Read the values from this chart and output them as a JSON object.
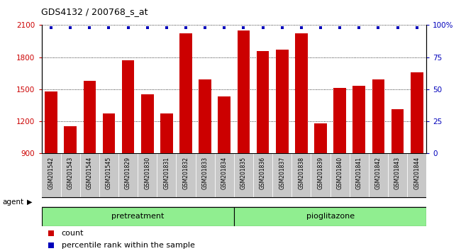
{
  "title": "GDS4132 / 200768_s_at",
  "samples": [
    "GSM201542",
    "GSM201543",
    "GSM201544",
    "GSM201545",
    "GSM201829",
    "GSM201830",
    "GSM201831",
    "GSM201832",
    "GSM201833",
    "GSM201834",
    "GSM201835",
    "GSM201836",
    "GSM201837",
    "GSM201838",
    "GSM201839",
    "GSM201840",
    "GSM201841",
    "GSM201842",
    "GSM201843",
    "GSM201844"
  ],
  "counts": [
    1480,
    1155,
    1580,
    1270,
    1770,
    1450,
    1270,
    2020,
    1590,
    1430,
    2050,
    1860,
    1870,
    2020,
    1180,
    1510,
    1530,
    1590,
    1310,
    1660
  ],
  "pretreatment_count": 10,
  "pioglitazone_count": 10,
  "ylim_left": [
    900,
    2100
  ],
  "ylim_right": [
    0,
    100
  ],
  "yticks_left": [
    900,
    1200,
    1500,
    1800,
    2100
  ],
  "yticks_right": [
    0,
    25,
    50,
    75,
    100
  ],
  "bar_color": "#cc0000",
  "dot_color": "#0000bb",
  "plot_bg": "#ffffff",
  "tick_bg": "#c8c8c8",
  "group_color": "#90ee90",
  "group_labels": [
    "pretreatment",
    "pioglitazone"
  ],
  "legend_count_label": "count",
  "legend_percentile_label": "percentile rank within the sample",
  "agent_label": "agent"
}
